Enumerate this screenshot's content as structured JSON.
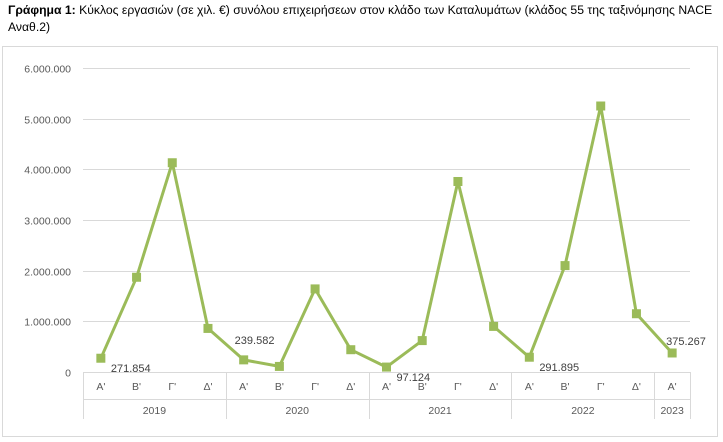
{
  "caption": {
    "label": "Γράφημα 1:",
    "text": "Κύκλος εργασιών (σε χιλ. €) συνόλου επιχειρήσεων στον κλάδο των Καταλυμάτων (κλάδος 55 της ταξινόμησης NACE Αναθ.2)"
  },
  "chart_data": {
    "type": "line",
    "title": "",
    "xlabel": "",
    "ylabel": "",
    "ylim": [
      0,
      6000000
    ],
    "yticks": [
      "0",
      "1.000.000",
      "2.000.000",
      "3.000.000",
      "4.000.000",
      "5.000.000",
      "6.000.000"
    ],
    "grid": true,
    "legend": "none",
    "color": "#9bbb59",
    "groups": [
      {
        "label": "2019",
        "quarters": [
          "Α'",
          "Β'",
          "Γ'",
          "Δ'"
        ]
      },
      {
        "label": "2020",
        "quarters": [
          "Α'",
          "Β'",
          "Γ'",
          "Δ'"
        ]
      },
      {
        "label": "2021",
        "quarters": [
          "Α'",
          "Β'",
          "Γ'",
          "Δ'"
        ]
      },
      {
        "label": "2022",
        "quarters": [
          "Α'",
          "Β'",
          "Γ'",
          "Δ'"
        ]
      },
      {
        "label": "2023",
        "quarters": [
          "Α'"
        ]
      }
    ],
    "values": [
      271854,
      1870000,
      4130000,
      860000,
      239582,
      110000,
      1640000,
      440000,
      97124,
      620000,
      3760000,
      900000,
      291895,
      2100000,
      5250000,
      1150000,
      375267
    ],
    "data_labels": [
      {
        "index": 0,
        "text": "271.854"
      },
      {
        "index": 4,
        "text": "239.582"
      },
      {
        "index": 8,
        "text": "97.124"
      },
      {
        "index": 12,
        "text": "291.895"
      },
      {
        "index": 16,
        "text": "375.267"
      }
    ]
  }
}
